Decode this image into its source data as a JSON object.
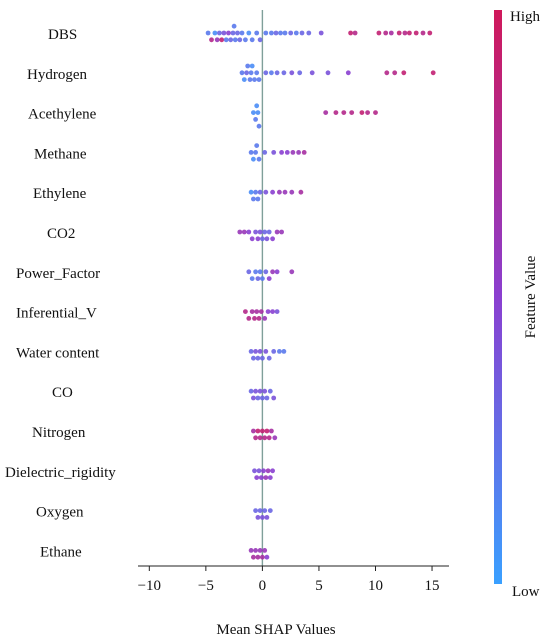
{
  "chart_data": {
    "type": "scatter",
    "subtype": "shap-beeswarm",
    "xlabel": "Mean SHAP Values",
    "xlim": [
      -11,
      16.5
    ],
    "xticks": [
      -10,
      -5,
      0,
      5,
      10,
      15
    ],
    "xtick_labels": [
      "−10",
      "−5",
      "0",
      "5",
      "10",
      "15"
    ],
    "zero_line": true,
    "colorbar": {
      "label": "Feature Value",
      "high": "High",
      "low": "Low",
      "color_low": "#3aa0ff",
      "color_mid": "#8a3fd0",
      "color_high": "#d0185a"
    },
    "features": [
      {
        "name": "DBS",
        "points": [
          [
            -4.8,
            0.2
          ],
          [
            -4.5,
            0.8
          ],
          [
            -4.2,
            0.1
          ],
          [
            -4.0,
            0.6
          ],
          [
            -3.8,
            0.3
          ],
          [
            -3.6,
            0.9
          ],
          [
            -3.4,
            0.4
          ],
          [
            -3.2,
            0.2
          ],
          [
            -3.0,
            0.5
          ],
          [
            -2.8,
            0.3
          ],
          [
            -2.6,
            0.3
          ],
          [
            -2.5,
            0.2
          ],
          [
            -2.4,
            0.2
          ],
          [
            -2.2,
            0.3
          ],
          [
            -2.0,
            0.3
          ],
          [
            -1.8,
            0.2
          ],
          [
            -1.5,
            0.2
          ],
          [
            -1.2,
            0.1
          ],
          [
            -0.9,
            0.2
          ],
          [
            -0.5,
            0.2
          ],
          [
            -0.2,
            0.3
          ],
          [
            0.3,
            0.2
          ],
          [
            0.8,
            0.2
          ],
          [
            1.2,
            0.3
          ],
          [
            1.6,
            0.2
          ],
          [
            2.0,
            0.2
          ],
          [
            2.5,
            0.3
          ],
          [
            3.0,
            0.2
          ],
          [
            3.5,
            0.3
          ],
          [
            4.1,
            0.3
          ],
          [
            5.2,
            0.4
          ],
          [
            7.8,
            0.9
          ],
          [
            8.2,
            0.8
          ],
          [
            10.3,
            0.9
          ],
          [
            10.9,
            0.8
          ],
          [
            11.4,
            0.7
          ],
          [
            12.1,
            0.9
          ],
          [
            12.6,
            0.8
          ],
          [
            13.0,
            0.9
          ],
          [
            13.6,
            0.9
          ],
          [
            14.2,
            0.8
          ],
          [
            14.8,
            0.9
          ]
        ]
      },
      {
        "name": "Hydrogen",
        "points": [
          [
            -1.8,
            0.2
          ],
          [
            -1.6,
            0.1
          ],
          [
            -1.4,
            0.3
          ],
          [
            -1.3,
            0.2
          ],
          [
            -1.1,
            0.2
          ],
          [
            -1.0,
            0.2
          ],
          [
            -0.9,
            0.1
          ],
          [
            -0.7,
            0.2
          ],
          [
            -0.5,
            0.2
          ],
          [
            -0.3,
            0.2
          ],
          [
            0.3,
            0.3
          ],
          [
            0.8,
            0.2
          ],
          [
            1.3,
            0.3
          ],
          [
            1.9,
            0.3
          ],
          [
            2.6,
            0.4
          ],
          [
            3.3,
            0.3
          ],
          [
            4.4,
            0.4
          ],
          [
            5.8,
            0.4
          ],
          [
            7.6,
            0.5
          ],
          [
            11.0,
            0.8
          ],
          [
            11.7,
            0.8
          ],
          [
            12.5,
            0.9
          ],
          [
            15.1,
            0.9
          ]
        ]
      },
      {
        "name": "Acethylene",
        "points": [
          [
            -0.8,
            0.1
          ],
          [
            -0.6,
            0.2
          ],
          [
            -0.5,
            0.1
          ],
          [
            -0.4,
            0.1
          ],
          [
            -0.3,
            0.2
          ],
          [
            5.6,
            0.7
          ],
          [
            6.5,
            0.8
          ],
          [
            7.2,
            0.8
          ],
          [
            7.9,
            0.8
          ],
          [
            8.8,
            0.9
          ],
          [
            9.3,
            0.8
          ],
          [
            10.0,
            0.8
          ]
        ]
      },
      {
        "name": "Methane",
        "points": [
          [
            -1.0,
            0.2
          ],
          [
            -0.8,
            0.1
          ],
          [
            -0.6,
            0.2
          ],
          [
            -0.5,
            0.2
          ],
          [
            -0.3,
            0.2
          ],
          [
            0.2,
            0.3
          ],
          [
            1.0,
            0.4
          ],
          [
            1.7,
            0.5
          ],
          [
            2.2,
            0.5
          ],
          [
            2.7,
            0.6
          ],
          [
            3.2,
            0.6
          ],
          [
            3.7,
            0.7
          ]
        ]
      },
      {
        "name": "Ethylene",
        "points": [
          [
            -1.0,
            0.1
          ],
          [
            -0.8,
            0.2
          ],
          [
            -0.6,
            0.2
          ],
          [
            -0.4,
            0.2
          ],
          [
            -0.2,
            0.3
          ],
          [
            0.3,
            0.4
          ],
          [
            0.9,
            0.5
          ],
          [
            1.5,
            0.6
          ],
          [
            2.0,
            0.6
          ],
          [
            2.6,
            0.6
          ],
          [
            3.4,
            0.7
          ]
        ]
      },
      {
        "name": "CO2",
        "points": [
          [
            -2.0,
            0.6
          ],
          [
            -1.6,
            0.6
          ],
          [
            -1.2,
            0.5
          ],
          [
            -0.9,
            0.5
          ],
          [
            -0.6,
            0.4
          ],
          [
            -0.4,
            0.5
          ],
          [
            -0.2,
            0.4
          ],
          [
            0.0,
            0.3
          ],
          [
            0.2,
            0.3
          ],
          [
            0.4,
            0.4
          ],
          [
            0.6,
            0.3
          ],
          [
            0.9,
            0.5
          ],
          [
            1.3,
            0.6
          ],
          [
            1.7,
            0.6
          ]
        ]
      },
      {
        "name": "Power_Factor",
        "points": [
          [
            -1.2,
            0.3
          ],
          [
            -0.9,
            0.2
          ],
          [
            -0.6,
            0.2
          ],
          [
            -0.4,
            0.3
          ],
          [
            -0.2,
            0.2
          ],
          [
            0.0,
            0.2
          ],
          [
            0.3,
            0.3
          ],
          [
            0.6,
            0.5
          ],
          [
            0.9,
            0.6
          ],
          [
            1.3,
            0.5
          ],
          [
            2.6,
            0.6
          ]
        ]
      },
      {
        "name": "Inferential_V",
        "points": [
          [
            -1.5,
            0.8
          ],
          [
            -1.2,
            0.8
          ],
          [
            -0.9,
            0.7
          ],
          [
            -0.7,
            0.8
          ],
          [
            -0.5,
            0.7
          ],
          [
            -0.3,
            0.8
          ],
          [
            -0.1,
            0.7
          ],
          [
            0.2,
            0.6
          ],
          [
            0.5,
            0.5
          ],
          [
            0.9,
            0.5
          ],
          [
            1.3,
            0.4
          ]
        ]
      },
      {
        "name": "Water content",
        "points": [
          [
            -1.0,
            0.3
          ],
          [
            -0.8,
            0.3
          ],
          [
            -0.6,
            0.4
          ],
          [
            -0.4,
            0.3
          ],
          [
            -0.2,
            0.4
          ],
          [
            0.0,
            0.3
          ],
          [
            0.3,
            0.4
          ],
          [
            0.6,
            0.3
          ],
          [
            1.0,
            0.3
          ],
          [
            1.5,
            0.2
          ],
          [
            1.9,
            0.2
          ]
        ]
      },
      {
        "name": "CO",
        "points": [
          [
            -1.0,
            0.3
          ],
          [
            -0.8,
            0.4
          ],
          [
            -0.6,
            0.4
          ],
          [
            -0.4,
            0.3
          ],
          [
            -0.2,
            0.4
          ],
          [
            0.0,
            0.3
          ],
          [
            0.2,
            0.4
          ],
          [
            0.4,
            0.3
          ],
          [
            0.7,
            0.3
          ],
          [
            1.0,
            0.4
          ]
        ]
      },
      {
        "name": "Nitrogen",
        "points": [
          [
            -0.8,
            0.7
          ],
          [
            -0.6,
            0.8
          ],
          [
            -0.4,
            0.9
          ],
          [
            -0.2,
            0.8
          ],
          [
            0.0,
            0.9
          ],
          [
            0.2,
            0.8
          ],
          [
            0.4,
            0.9
          ],
          [
            0.6,
            0.8
          ],
          [
            0.8,
            0.7
          ],
          [
            1.1,
            0.6
          ]
        ]
      },
      {
        "name": "Dielectric_rigidity",
        "points": [
          [
            -0.7,
            0.4
          ],
          [
            -0.5,
            0.5
          ],
          [
            -0.3,
            0.4
          ],
          [
            -0.1,
            0.5
          ],
          [
            0.1,
            0.5
          ],
          [
            0.3,
            0.6
          ],
          [
            0.5,
            0.6
          ],
          [
            0.7,
            0.5
          ],
          [
            0.9,
            0.5
          ]
        ]
      },
      {
        "name": "Oxygen",
        "points": [
          [
            -0.6,
            0.3
          ],
          [
            -0.4,
            0.4
          ],
          [
            -0.2,
            0.3
          ],
          [
            0.0,
            0.4
          ],
          [
            0.2,
            0.3
          ],
          [
            0.4,
            0.4
          ],
          [
            0.7,
            0.3
          ]
        ]
      },
      {
        "name": "Ethane",
        "points": [
          [
            -1.0,
            0.6
          ],
          [
            -0.8,
            0.7
          ],
          [
            -0.6,
            0.6
          ],
          [
            -0.4,
            0.7
          ],
          [
            -0.2,
            0.6
          ],
          [
            0.0,
            0.7
          ],
          [
            0.2,
            0.6
          ],
          [
            0.4,
            0.5
          ]
        ]
      }
    ]
  }
}
